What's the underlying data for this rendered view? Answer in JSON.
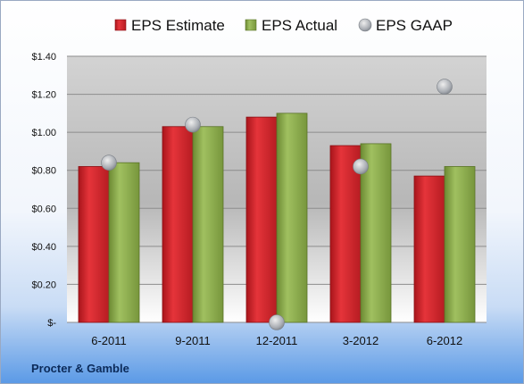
{
  "chart_data": {
    "type": "bar",
    "categories": [
      "6-2011",
      "9-2011",
      "12-2011",
      "3-2012",
      "6-2012"
    ],
    "series": [
      {
        "name": "EPS Estimate",
        "type": "bar",
        "values": [
          0.82,
          1.03,
          1.08,
          0.93,
          0.77
        ],
        "color": "#d0242b"
      },
      {
        "name": "EPS Actual",
        "type": "bar",
        "values": [
          0.84,
          1.03,
          1.1,
          0.94,
          0.82
        ],
        "color": "#8aab4a"
      },
      {
        "name": "EPS GAAP",
        "type": "scatter",
        "values": [
          0.84,
          1.04,
          0.0,
          0.82,
          1.24
        ],
        "color": "#b8bcc3"
      }
    ],
    "yticks": [
      "$-",
      "$0.20",
      "$0.40",
      "$0.60",
      "$0.80",
      "$1.00",
      "$1.20",
      "$1.40"
    ],
    "ylim": [
      0,
      1.4
    ],
    "grid": true,
    "legend_position": "top",
    "footer": "Procter & Gamble"
  }
}
